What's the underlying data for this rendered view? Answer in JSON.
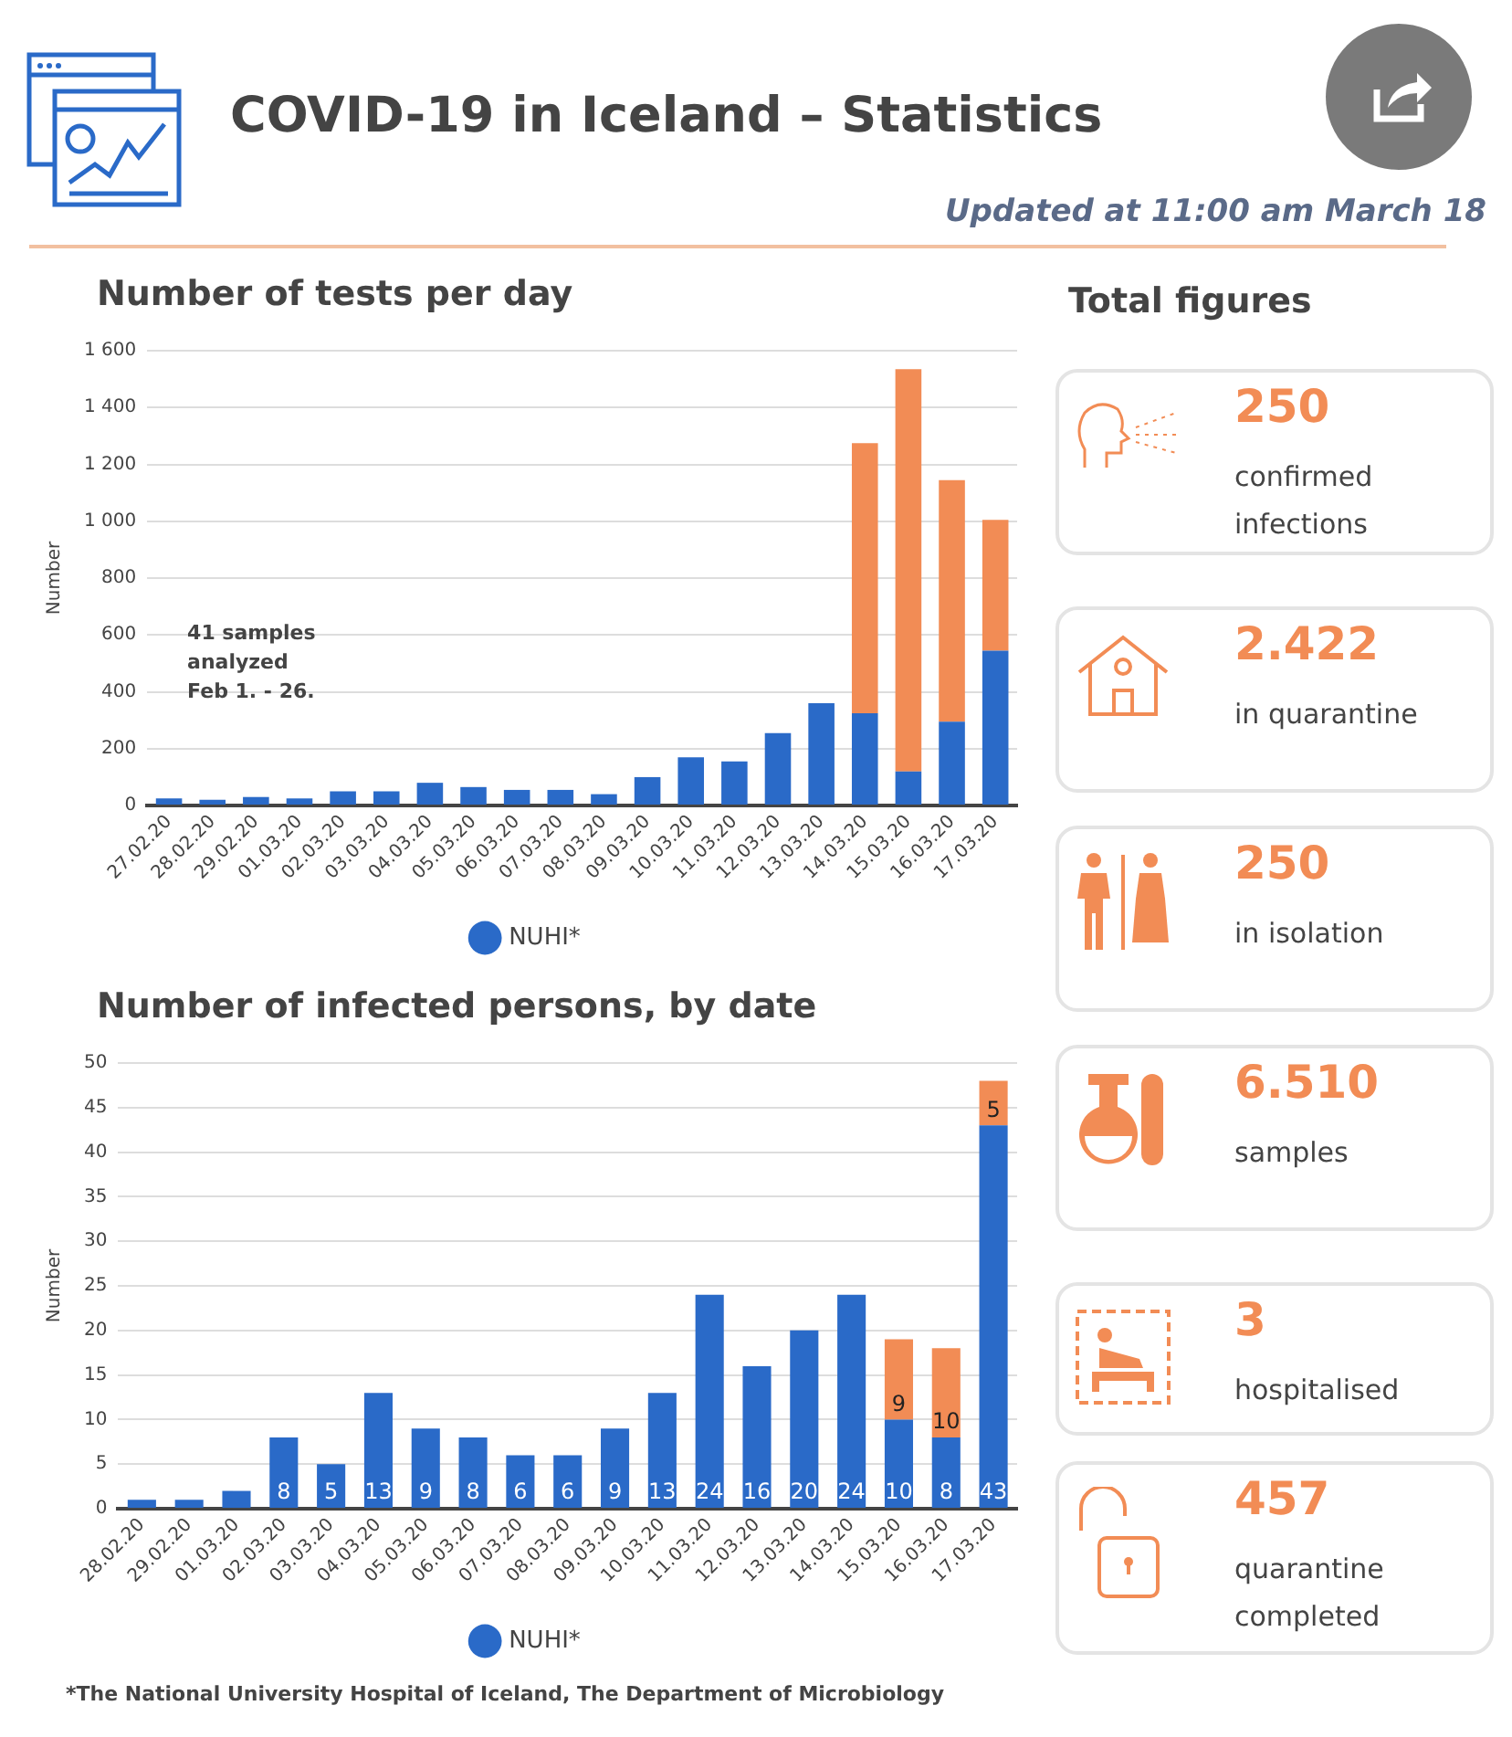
{
  "chart_data": [
    {
      "type": "other",
      "title": "COVID-19 in Iceland – Statistics",
      "subtitle": "Updated at 11:00 am March 18"
    },
    {
      "type": "bar",
      "title": "Number of tests per day",
      "ylabel": "Number",
      "stacked": true,
      "grid": "y",
      "legend": "bottom",
      "categories": [
        "27.02.20",
        "28.02.20",
        "29.02.20",
        "01.03.20",
        "02.03.20",
        "03.03.20",
        "04.03.20",
        "05.03.20",
        "06.03.20",
        "07.03.20",
        "08.03.20",
        "09.03.20",
        "10.03.20",
        "11.03.20",
        "12.03.20",
        "13.03.20",
        "14.03.20",
        "15.03.20",
        "16.03.20",
        "17.03.20"
      ],
      "ylim": [
        0,
        1600
      ],
      "yticks": [
        0,
        200,
        400,
        600,
        800,
        {
          "value": 1000,
          "label": "1 000"
        },
        {
          "value": 1200,
          "label": "1 200"
        },
        {
          "value": 1400,
          "label": "1 400"
        },
        {
          "value": 1600,
          "label": "1 600"
        }
      ],
      "series": [
        {
          "name": "NUHI*",
          "color": "#2a6ac8",
          "values": [
            25,
            20,
            30,
            25,
            50,
            50,
            80,
            65,
            55,
            55,
            40,
            100,
            170,
            155,
            255,
            360,
            325,
            120,
            295,
            545
          ]
        },
        {
          "color": "#f28c55",
          "values": [
            null,
            null,
            null,
            null,
            null,
            null,
            null,
            null,
            null,
            null,
            null,
            null,
            null,
            null,
            null,
            null,
            950,
            1415,
            850,
            460
          ]
        }
      ],
      "annotations": [
        "41 samples analyzed Feb 1. - 26."
      ]
    },
    {
      "type": "bar",
      "title": "Number of infected persons, by date",
      "ylabel": "Number",
      "stacked": true,
      "grid": "y",
      "legend": "bottom",
      "categories": [
        "28.02.20",
        "29.02.20",
        "01.03.20",
        "02.03.20",
        "03.03.20",
        "04.03.20",
        "05.03.20",
        "06.03.20",
        "07.03.20",
        "08.03.20",
        "09.03.20",
        "10.03.20",
        "11.03.20",
        "12.03.20",
        "13.03.20",
        "14.03.20",
        "15.03.20",
        "16.03.20",
        "17.03.20"
      ],
      "ylim": [
        0,
        50
      ],
      "yticks": [
        0,
        5,
        10,
        15,
        20,
        25,
        30,
        35,
        40,
        45,
        50
      ],
      "series": [
        {
          "name": "NUHI*",
          "color": "#2a6ac8",
          "values": [
            1,
            1,
            2,
            8,
            5,
            13,
            9,
            8,
            6,
            6,
            9,
            13,
            24,
            16,
            20,
            24,
            10,
            8,
            43
          ],
          "value_labels": [
            null,
            null,
            null,
            "8",
            "5",
            "13",
            "9",
            "8",
            "6",
            "6",
            "9",
            "13",
            "24",
            "16",
            "20",
            "24",
            "10",
            "8",
            "43"
          ]
        },
        {
          "color": "#f28c55",
          "values": [
            null,
            null,
            null,
            null,
            null,
            null,
            null,
            null,
            null,
            null,
            null,
            null,
            null,
            null,
            null,
            null,
            9,
            10,
            5
          ],
          "value_labels": [
            null,
            null,
            null,
            null,
            null,
            null,
            null,
            null,
            null,
            null,
            null,
            null,
            null,
            null,
            null,
            null,
            "9",
            "10",
            "5"
          ]
        }
      ],
      "annotations": [
        "*The National University Hospital of Iceland, The Department of Microbiology"
      ]
    },
    {
      "type": "other",
      "title": "Total figures",
      "annotations": [
        "250",
        "confirmed infections",
        "2.422",
        "in quarantine",
        "250",
        "in isolation",
        "6.510",
        "samples",
        "3",
        "hospitalised",
        "457",
        "quarantine completed"
      ]
    }
  ]
}
